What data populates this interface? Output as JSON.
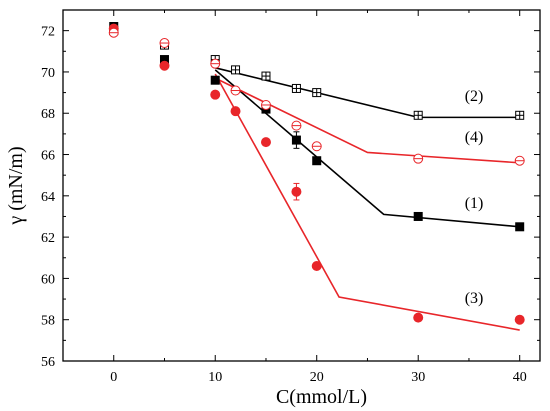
{
  "chart_data": {
    "type": "scatter",
    "xlabel": "C(mmol/L)",
    "ylabel": "γ (mN/m)",
    "xlim": [
      -5,
      42
    ],
    "ylim": [
      56,
      73
    ],
    "xticks": [
      0,
      10,
      20,
      30,
      40
    ],
    "yticks": [
      56,
      58,
      60,
      62,
      64,
      66,
      68,
      70,
      72
    ],
    "grid": false,
    "series": [
      {
        "name": "(1)",
        "color": "#000000",
        "marker": "filled-square",
        "points": [
          {
            "x": 0,
            "y": 72.2
          },
          {
            "x": 5,
            "y": 70.6
          },
          {
            "x": 10,
            "y": 69.6
          },
          {
            "x": 15,
            "y": 68.2
          },
          {
            "x": 18,
            "y": 66.7
          },
          {
            "x": 20,
            "y": 65.7
          },
          {
            "x": 30,
            "y": 63.0
          },
          {
            "x": 40,
            "y": 62.5
          }
        ],
        "error_bars": [
          {
            "x": 18,
            "y": 66.7,
            "err": 0.4
          }
        ],
        "fit": [
          {
            "x": 10,
            "y": 70.1
          },
          {
            "x": 26.6,
            "y": 63.1
          },
          {
            "x": 40,
            "y": 62.5
          }
        ]
      },
      {
        "name": "(2)",
        "color": "#000000",
        "marker": "crossed-square",
        "points": [
          {
            "x": 0,
            "y": 72.0
          },
          {
            "x": 5,
            "y": 71.3
          },
          {
            "x": 10,
            "y": 70.6
          },
          {
            "x": 12,
            "y": 70.1
          },
          {
            "x": 15,
            "y": 69.8
          },
          {
            "x": 18,
            "y": 69.2
          },
          {
            "x": 20,
            "y": 69.0
          },
          {
            "x": 30,
            "y": 67.9
          },
          {
            "x": 40,
            "y": 67.9
          }
        ],
        "fit": [
          {
            "x": 10,
            "y": 70.2
          },
          {
            "x": 30,
            "y": 67.8
          },
          {
            "x": 40,
            "y": 67.8
          }
        ]
      },
      {
        "name": "(3)",
        "color": "#e8262a",
        "marker": "filled-circle",
        "points": [
          {
            "x": 0,
            "y": 72.1
          },
          {
            "x": 5,
            "y": 70.3
          },
          {
            "x": 10,
            "y": 68.9
          },
          {
            "x": 12,
            "y": 68.1
          },
          {
            "x": 15,
            "y": 66.6
          },
          {
            "x": 18,
            "y": 64.2
          },
          {
            "x": 20,
            "y": 60.6
          },
          {
            "x": 30,
            "y": 58.1
          },
          {
            "x": 40,
            "y": 58.0
          }
        ],
        "error_bars": [
          {
            "x": 18,
            "y": 64.2,
            "err": 0.4
          }
        ],
        "fit": [
          {
            "x": 10,
            "y": 69.9
          },
          {
            "x": 22.2,
            "y": 59.1
          },
          {
            "x": 40,
            "y": 57.5
          }
        ]
      },
      {
        "name": "(4)",
        "color": "#e8262a",
        "marker": "crossed-circle",
        "points": [
          {
            "x": 0,
            "y": 71.9
          },
          {
            "x": 5,
            "y": 71.4
          },
          {
            "x": 10,
            "y": 70.4
          },
          {
            "x": 12,
            "y": 69.1
          },
          {
            "x": 15,
            "y": 68.4
          },
          {
            "x": 18,
            "y": 67.4
          },
          {
            "x": 20,
            "y": 66.4
          },
          {
            "x": 30,
            "y": 65.8
          },
          {
            "x": 40,
            "y": 65.7
          }
        ],
        "fit": [
          {
            "x": 10,
            "y": 69.7
          },
          {
            "x": 25,
            "y": 66.1
          },
          {
            "x": 40,
            "y": 65.6
          }
        ]
      }
    ],
    "annotations": [
      {
        "text": "(1)",
        "x": 35.5,
        "y": 63.4
      },
      {
        "text": "(2)",
        "x": 35.5,
        "y": 68.6
      },
      {
        "text": "(3)",
        "x": 35.5,
        "y": 58.8
      },
      {
        "text": "(4)",
        "x": 35.5,
        "y": 66.6
      }
    ]
  }
}
